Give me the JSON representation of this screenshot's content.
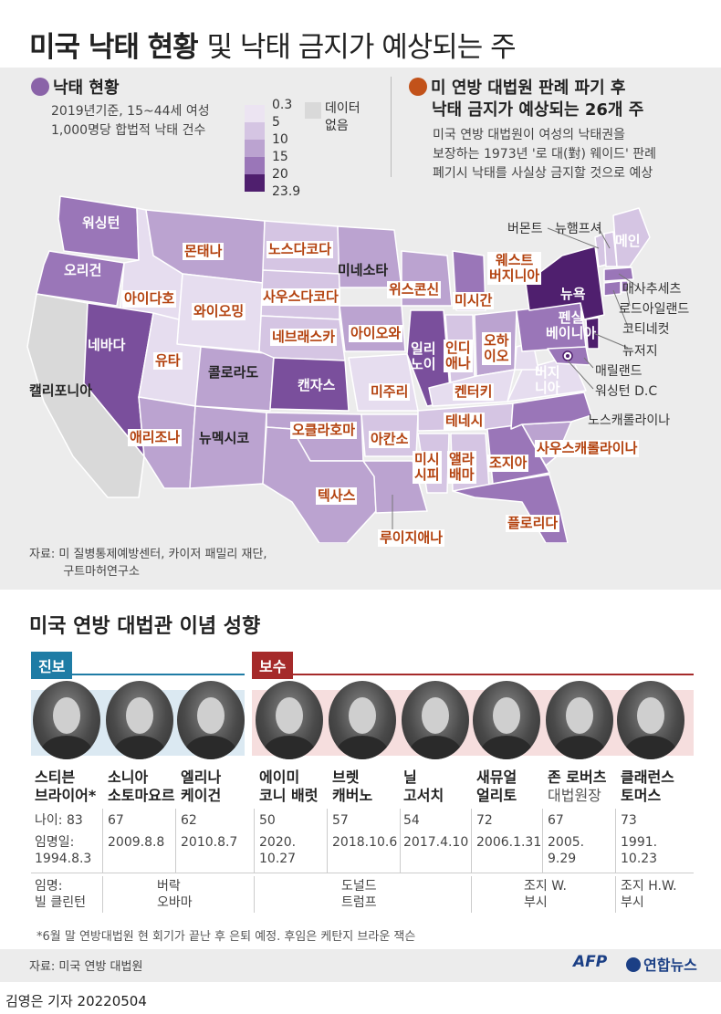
{
  "title": {
    "main": "미국 낙태 현황",
    "sub": "및 낙태 금지가 예상되는 주"
  },
  "legend_left": {
    "heading": "낙태 현황",
    "dot_color": "#8a63a8",
    "note_line1": "2019년기준, 15~44세 여성",
    "note_line2": "1,000명당 합법적 낙태 건수",
    "scale_values": [
      "0.3",
      "5",
      "10",
      "15",
      "20",
      "23.9"
    ],
    "scale_colors": [
      "#ece4f2",
      "#d5c5e3",
      "#bba3d0",
      "#9a76b8",
      "#7a4f9c",
      "#4f1f6e"
    ],
    "no_data_label": "데이터\n없음",
    "no_data_color": "#d9d9d9"
  },
  "legend_right": {
    "heading_line1": "미 연방 대법원 판례 파기 후",
    "heading_line2": "낙태 금지가 예상되는 26개 주",
    "dot_color": "#c2521a",
    "note_line1": "미국 연방 대법원이 여성의 낙태권을",
    "note_line2": "보장하는 1973년 '로 대(對) 웨이드' 판례",
    "note_line3": "폐기시 낙태를 사실상 금지할 것으로 예상"
  },
  "map": {
    "states": {
      "washington": "워싱턴",
      "oregon": "오리건",
      "california": "캘리포니아",
      "nevada": "네바다",
      "idaho": "아이다호",
      "montana": "몬태나",
      "wyoming": "와이오밍",
      "utah": "유타",
      "colorado": "콜로라도",
      "arizona": "애리조나",
      "new_mexico": "뉴멕시코",
      "north_dakota": "노스다코다",
      "south_dakota": "사우스다코다",
      "nebraska": "네브래스카",
      "kansas": "캔자스",
      "oklahoma": "오클라호마",
      "texas": "텍사스",
      "minnesota": "미네소타",
      "iowa": "아이오와",
      "missouri": "미주리",
      "arkansas": "아칸소",
      "louisiana": "루이지애나",
      "wisconsin": "위스콘신",
      "illinois": "일리\n노이",
      "michigan": "미시간",
      "indiana": "인디\n애나",
      "ohio": "오하\n이오",
      "kentucky": "켄터키",
      "tennessee": "테네시",
      "mississippi": "미시\n시피",
      "alabama": "앨라\n배마",
      "georgia": "조지아",
      "florida": "플로리다",
      "south_carolina": "사우스캐롤라이나",
      "north_carolina": "노스캐롤라이나",
      "virginia": "버지\n니아",
      "west_virginia": "웨스트\n버지니아",
      "pennsylvania": "펜실\n베이니아",
      "new_york": "뉴욕",
      "vermont": "버몬트",
      "new_hampshire": "뉴햄프셔",
      "maine": "메인",
      "massachusetts": "매사추세츠",
      "rhode_island": "로드아일랜드",
      "connecticut": "코티네컷",
      "new_jersey": "뉴저지",
      "maryland": "매릴랜드",
      "dc": "워싱턴 D.C"
    },
    "ban_color": "#b3420f"
  },
  "source_map": "자료: 미 질병통제예방센터, 카이저 패밀리 재단,\n         구트마허연구소",
  "justices_section": {
    "title": "미국 연방 대법관 이념 성향",
    "liberal_label": "진보",
    "liberal_color": "#1f7ca5",
    "conservative_label": "보수",
    "conservative_color": "#a52a2a",
    "row_labels": {
      "age": "나이: ",
      "appointed": "임명일:",
      "appointed_by": "임명:"
    },
    "justices": [
      {
        "name": "스티븐\n브라이어*",
        "age": "83",
        "appointed": "1994.8.3"
      },
      {
        "name": "소니아\n소토마요르",
        "age": "67",
        "appointed": "2009.8.8"
      },
      {
        "name": "엘리나\n케이건",
        "age": "62",
        "appointed": "2010.8.7"
      },
      {
        "name": "에이미\n코니 배럿",
        "age": "50",
        "appointed": "2020.\n10.27"
      },
      {
        "name": "브렛\n캐버노",
        "age": "57",
        "appointed": "2018.10.6"
      },
      {
        "name": "닐\n고서치",
        "age": "54",
        "appointed": "2017.4.10"
      },
      {
        "name": "새뮤얼\n얼리토",
        "age": "72",
        "appointed": "2006.1.31"
      },
      {
        "name": "존 로버츠",
        "name_note": "대법원장",
        "age": "67",
        "appointed": "2005.\n9.29"
      },
      {
        "name": "클래런스\n토머스",
        "age": "73",
        "appointed": "1991.\n10.23"
      }
    ],
    "presidents": [
      "빌 클린턴",
      "버락\n오바마",
      "도널드\n트럼프",
      "조지 W.\n부시",
      "조지 H.W.\n부시"
    ]
  },
  "footnote": "*6월 말 연방대법원 현 회기가 끝난 후 은퇴 예정. 후임은 케탄지 브라운 잭슨",
  "source_justices": "자료: 미국 연방 대법원",
  "logos": {
    "afp": "AFP",
    "yonhap": "연합뉴스"
  },
  "credit": "김영은 기자  20220504"
}
